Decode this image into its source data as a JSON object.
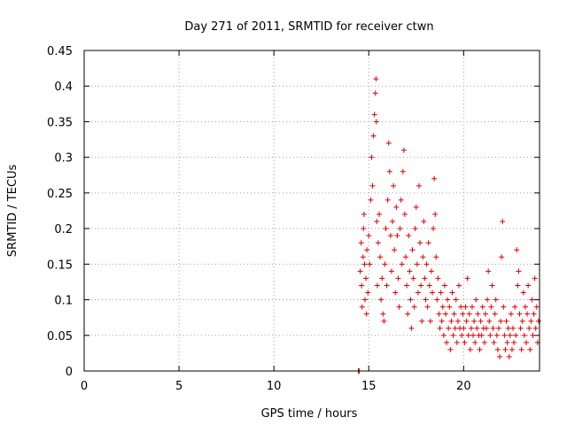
{
  "chart_data": {
    "type": "scatter",
    "title": "Day 271 of 2011, SRMTID for receiver ctwn",
    "xlabel": "GPS time / hours",
    "ylabel": "SRMTID / TECUs",
    "xlim": [
      0,
      24
    ],
    "ylim": [
      0,
      0.45
    ],
    "grid": true,
    "x_ticks": [
      0,
      5,
      10,
      15,
      20
    ],
    "x_tick_labels": [
      "0",
      "5",
      "10",
      "15",
      "20"
    ],
    "y_ticks": [
      0,
      0.05,
      0.1,
      0.15,
      0.2,
      0.25,
      0.3,
      0.35,
      0.4,
      0.45
    ],
    "y_tick_labels": [
      "0",
      "0.05",
      "0.1",
      "0.15",
      "0.2",
      "0.25",
      "0.3",
      "0.35",
      "0.4",
      "0.45"
    ],
    "marker": "plus",
    "color": "#e00000",
    "series": [
      {
        "name": "SRMTID",
        "points": [
          [
            14.45,
            0.0
          ],
          [
            14.5,
            0.0
          ],
          [
            14.55,
            0.14
          ],
          [
            14.6,
            0.18
          ],
          [
            14.62,
            0.12
          ],
          [
            14.65,
            0.09
          ],
          [
            14.7,
            0.16
          ],
          [
            14.72,
            0.2
          ],
          [
            14.75,
            0.22
          ],
          [
            14.78,
            0.15
          ],
          [
            14.8,
            0.1
          ],
          [
            14.85,
            0.13
          ],
          [
            14.88,
            0.08
          ],
          [
            14.9,
            0.17
          ],
          [
            14.95,
            0.11
          ],
          [
            15.0,
            0.19
          ],
          [
            15.05,
            0.15
          ],
          [
            15.1,
            0.24
          ],
          [
            15.15,
            0.3
          ],
          [
            15.2,
            0.26
          ],
          [
            15.25,
            0.33
          ],
          [
            15.3,
            0.36
          ],
          [
            15.35,
            0.39
          ],
          [
            15.38,
            0.41
          ],
          [
            15.4,
            0.35
          ],
          [
            15.42,
            0.21
          ],
          [
            15.45,
            0.12
          ],
          [
            15.5,
            0.18
          ],
          [
            15.55,
            0.22
          ],
          [
            15.6,
            0.16
          ],
          [
            15.65,
            0.1
          ],
          [
            15.7,
            0.13
          ],
          [
            15.75,
            0.08
          ],
          [
            15.8,
            0.07
          ],
          [
            15.85,
            0.15
          ],
          [
            15.9,
            0.2
          ],
          [
            15.95,
            0.12
          ],
          [
            16.0,
            0.24
          ],
          [
            16.05,
            0.32
          ],
          [
            16.1,
            0.28
          ],
          [
            16.15,
            0.19
          ],
          [
            16.2,
            0.14
          ],
          [
            16.25,
            0.21
          ],
          [
            16.3,
            0.26
          ],
          [
            16.35,
            0.17
          ],
          [
            16.4,
            0.11
          ],
          [
            16.45,
            0.23
          ],
          [
            16.5,
            0.19
          ],
          [
            16.55,
            0.13
          ],
          [
            16.6,
            0.09
          ],
          [
            16.65,
            0.2
          ],
          [
            16.7,
            0.24
          ],
          [
            16.75,
            0.15
          ],
          [
            16.8,
            0.28
          ],
          [
            16.85,
            0.31
          ],
          [
            16.9,
            0.22
          ],
          [
            16.95,
            0.16
          ],
          [
            17.0,
            0.12
          ],
          [
            17.05,
            0.08
          ],
          [
            17.1,
            0.19
          ],
          [
            17.15,
            0.14
          ],
          [
            17.2,
            0.1
          ],
          [
            17.25,
            0.06
          ],
          [
            17.3,
            0.17
          ],
          [
            17.35,
            0.13
          ],
          [
            17.4,
            0.09
          ],
          [
            17.45,
            0.2
          ],
          [
            17.5,
            0.23
          ],
          [
            17.55,
            0.15
          ],
          [
            17.6,
            0.11
          ],
          [
            17.65,
            0.26
          ],
          [
            17.7,
            0.18
          ],
          [
            17.75,
            0.12
          ],
          [
            17.8,
            0.07
          ],
          [
            17.85,
            0.16
          ],
          [
            17.9,
            0.21
          ],
          [
            17.95,
            0.13
          ],
          [
            18.0,
            0.1
          ],
          [
            18.05,
            0.15
          ],
          [
            18.1,
            0.09
          ],
          [
            18.15,
            0.18
          ],
          [
            18.2,
            0.12
          ],
          [
            18.25,
            0.07
          ],
          [
            18.3,
            0.14
          ],
          [
            18.35,
            0.11
          ],
          [
            18.4,
            0.2
          ],
          [
            18.45,
            0.27
          ],
          [
            18.5,
            0.22
          ],
          [
            18.55,
            0.16
          ],
          [
            18.6,
            0.1
          ],
          [
            18.65,
            0.13
          ],
          [
            18.7,
            0.08
          ],
          [
            18.75,
            0.06
          ],
          [
            18.8,
            0.11
          ],
          [
            18.85,
            0.07
          ],
          [
            18.9,
            0.09
          ],
          [
            18.95,
            0.05
          ],
          [
            19.0,
            0.12
          ],
          [
            19.05,
            0.08
          ],
          [
            19.1,
            0.04
          ],
          [
            19.15,
            0.1
          ],
          [
            19.2,
            0.06
          ],
          [
            19.25,
            0.09
          ],
          [
            19.3,
            0.03
          ],
          [
            19.35,
            0.07
          ],
          [
            19.4,
            0.11
          ],
          [
            19.45,
            0.05
          ],
          [
            19.5,
            0.08
          ],
          [
            19.55,
            0.06
          ],
          [
            19.6,
            0.1
          ],
          [
            19.65,
            0.04
          ],
          [
            19.7,
            0.07
          ],
          [
            19.75,
            0.12
          ],
          [
            19.8,
            0.06
          ],
          [
            19.85,
            0.09
          ],
          [
            19.9,
            0.05
          ],
          [
            19.95,
            0.08
          ],
          [
            20.0,
            0.06
          ],
          [
            20.05,
            0.04
          ],
          [
            20.1,
            0.09
          ],
          [
            20.15,
            0.07
          ],
          [
            20.2,
            0.13
          ],
          [
            20.25,
            0.05
          ],
          [
            20.3,
            0.08
          ],
          [
            20.35,
            0.03
          ],
          [
            20.4,
            0.06
          ],
          [
            20.45,
            0.09
          ],
          [
            20.5,
            0.05
          ],
          [
            20.55,
            0.07
          ],
          [
            20.6,
            0.04
          ],
          [
            20.65,
            0.1
          ],
          [
            20.7,
            0.06
          ],
          [
            20.75,
            0.08
          ],
          [
            20.8,
            0.05
          ],
          [
            20.85,
            0.03
          ],
          [
            20.9,
            0.07
          ],
          [
            20.95,
            0.05
          ],
          [
            21.0,
            0.09
          ],
          [
            21.05,
            0.06
          ],
          [
            21.1,
            0.04
          ],
          [
            21.15,
            0.08
          ],
          [
            21.2,
            0.06
          ],
          [
            21.25,
            0.1
          ],
          [
            21.3,
            0.14
          ],
          [
            21.35,
            0.07
          ],
          [
            21.4,
            0.05
          ],
          [
            21.45,
            0.09
          ],
          [
            21.5,
            0.12
          ],
          [
            21.55,
            0.06
          ],
          [
            21.6,
            0.04
          ],
          [
            21.65,
            0.08
          ],
          [
            21.7,
            0.1
          ],
          [
            21.75,
            0.05
          ],
          [
            21.8,
            0.03
          ],
          [
            21.85,
            0.06
          ],
          [
            21.9,
            0.02
          ],
          [
            21.95,
            0.07
          ],
          [
            22.0,
            0.16
          ],
          [
            22.05,
            0.21
          ],
          [
            22.1,
            0.09
          ],
          [
            22.15,
            0.05
          ],
          [
            22.2,
            0.03
          ],
          [
            22.25,
            0.07
          ],
          [
            22.3,
            0.04
          ],
          [
            22.35,
            0.06
          ],
          [
            22.4,
            0.02
          ],
          [
            22.45,
            0.05
          ],
          [
            22.5,
            0.08
          ],
          [
            22.55,
            0.03
          ],
          [
            22.6,
            0.06
          ],
          [
            22.65,
            0.04
          ],
          [
            22.7,
            0.09
          ],
          [
            22.75,
            0.05
          ],
          [
            22.8,
            0.17
          ],
          [
            22.85,
            0.12
          ],
          [
            22.9,
            0.14
          ],
          [
            22.95,
            0.08
          ],
          [
            23.0,
            0.06
          ],
          [
            23.05,
            0.03
          ],
          [
            23.1,
            0.07
          ],
          [
            23.15,
            0.11
          ],
          [
            23.2,
            0.05
          ],
          [
            23.25,
            0.09
          ],
          [
            23.3,
            0.04
          ],
          [
            23.35,
            0.08
          ],
          [
            23.4,
            0.12
          ],
          [
            23.45,
            0.06
          ],
          [
            23.5,
            0.03
          ],
          [
            23.55,
            0.07
          ],
          [
            23.6,
            0.1
          ],
          [
            23.65,
            0.05
          ],
          [
            23.7,
            0.08
          ],
          [
            23.75,
            0.13
          ],
          [
            23.8,
            0.06
          ],
          [
            23.85,
            0.09
          ],
          [
            23.9,
            0.04
          ],
          [
            23.95,
            0.07
          ]
        ]
      }
    ]
  }
}
